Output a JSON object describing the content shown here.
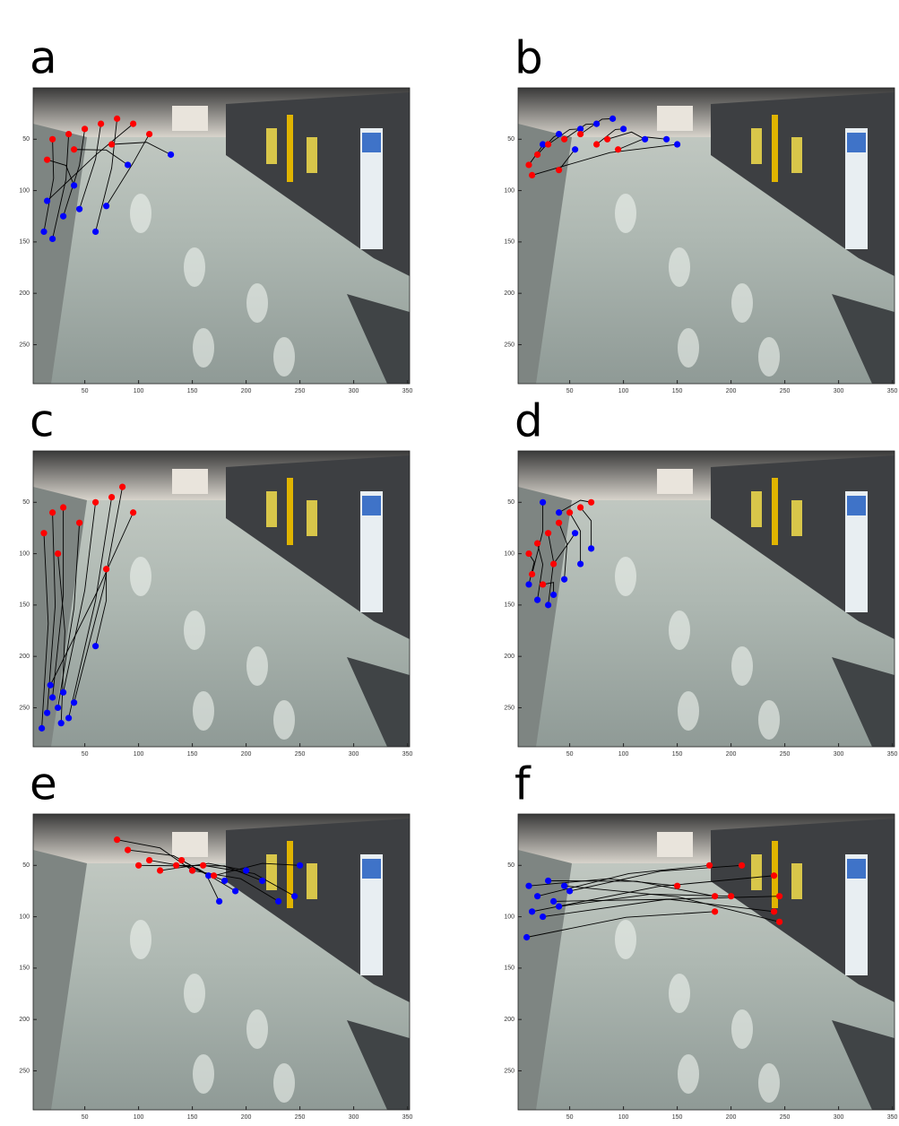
{
  "chart_data": [
    {
      "type": "scatter",
      "title": "a",
      "xlim": [
        2,
        352
      ],
      "ylim": [
        288,
        0
      ],
      "xticks": [
        50,
        100,
        150,
        200,
        250,
        300,
        350
      ],
      "yticks": [
        50,
        100,
        150,
        200,
        250
      ],
      "line_color": "#000000",
      "series": [
        {
          "color": "#0000ff",
          "x": [
            12,
            20,
            30,
            45,
            60,
            15,
            70,
            40,
            90,
            130
          ],
          "y": [
            140,
            147,
            125,
            118,
            140,
            110,
            115,
            95,
            75,
            65
          ]
        },
        {
          "color": "#ff0000",
          "x": [
            20,
            35,
            50,
            65,
            80,
            95,
            110,
            15,
            40,
            75
          ],
          "y": [
            50,
            45,
            40,
            35,
            30,
            35,
            45,
            70,
            60,
            55
          ]
        }
      ]
    },
    {
      "type": "scatter",
      "title": "b",
      "xlim": [
        2,
        352
      ],
      "ylim": [
        288,
        0
      ],
      "xticks": [
        50,
        100,
        150,
        200,
        250,
        300,
        350
      ],
      "yticks": [
        50,
        100,
        150,
        200,
        250
      ],
      "line_color": "#000000",
      "series": [
        {
          "color": "#0000ff",
          "x": [
            25,
            40,
            60,
            75,
            90,
            100,
            120,
            140,
            150,
            55
          ],
          "y": [
            55,
            45,
            40,
            35,
            30,
            40,
            50,
            50,
            55,
            60
          ]
        },
        {
          "color": "#ff0000",
          "x": [
            12,
            20,
            30,
            45,
            60,
            75,
            85,
            95,
            15,
            40
          ],
          "y": [
            75,
            65,
            55,
            50,
            45,
            55,
            50,
            60,
            85,
            80
          ]
        }
      ]
    },
    {
      "type": "scatter",
      "title": "c",
      "xlim": [
        2,
        352
      ],
      "ylim": [
        288,
        0
      ],
      "xticks": [
        50,
        100,
        150,
        200,
        250,
        300,
        350
      ],
      "yticks": [
        50,
        100,
        150,
        200,
        250
      ],
      "line_color": "#000000",
      "series": [
        {
          "color": "#0000ff",
          "x": [
            10,
            15,
            20,
            25,
            30,
            35,
            40,
            18,
            28,
            60
          ],
          "y": [
            270,
            255,
            240,
            250,
            235,
            260,
            245,
            228,
            265,
            190
          ]
        },
        {
          "color": "#ff0000",
          "x": [
            12,
            20,
            30,
            45,
            60,
            75,
            85,
            95,
            25,
            70
          ],
          "y": [
            80,
            60,
            55,
            70,
            50,
            45,
            35,
            60,
            100,
            115
          ]
        }
      ]
    },
    {
      "type": "scatter",
      "title": "d",
      "xlim": [
        2,
        352
      ],
      "ylim": [
        288,
        0
      ],
      "xticks": [
        50,
        100,
        150,
        200,
        250,
        300,
        350
      ],
      "yticks": [
        50,
        100,
        150,
        200,
        250
      ],
      "line_color": "#000000",
      "series": [
        {
          "color": "#0000ff",
          "x": [
            12,
            20,
            30,
            45,
            60,
            70,
            40,
            25,
            55,
            35
          ],
          "y": [
            130,
            145,
            150,
            125,
            110,
            95,
            60,
            50,
            80,
            140
          ]
        },
        {
          "color": "#ff0000",
          "x": [
            12,
            20,
            30,
            40,
            50,
            60,
            70,
            15,
            35,
            25
          ],
          "y": [
            100,
            90,
            80,
            70,
            60,
            55,
            50,
            120,
            110,
            130
          ]
        }
      ]
    },
    {
      "type": "scatter",
      "title": "e",
      "xlim": [
        2,
        352
      ],
      "ylim": [
        288,
        0
      ],
      "xticks": [
        50,
        100,
        150,
        200,
        250,
        300,
        350
      ],
      "yticks": [
        50,
        100,
        150,
        200,
        250
      ],
      "line_color": "#000000",
      "series": [
        {
          "color": "#0000ff",
          "x": [
            150,
            165,
            180,
            190,
            200,
            215,
            230,
            245,
            250,
            175
          ],
          "y": [
            55,
            60,
            65,
            75,
            55,
            65,
            85,
            80,
            50,
            85
          ]
        },
        {
          "color": "#ff0000",
          "x": [
            80,
            90,
            100,
            110,
            120,
            135,
            150,
            160,
            170,
            140
          ],
          "y": [
            25,
            35,
            50,
            45,
            55,
            50,
            55,
            50,
            60,
            45
          ]
        }
      ]
    },
    {
      "type": "scatter",
      "title": "f",
      "xlim": [
        2,
        352
      ],
      "ylim": [
        288,
        0
      ],
      "xticks": [
        50,
        100,
        150,
        200,
        250,
        300,
        350
      ],
      "yticks": [
        50,
        100,
        150,
        200,
        250
      ],
      "line_color": "#000000",
      "series": [
        {
          "color": "#0000ff",
          "x": [
            12,
            20,
            30,
            40,
            50,
            15,
            25,
            35,
            10,
            45
          ],
          "y": [
            70,
            80,
            65,
            90,
            75,
            95,
            100,
            85,
            120,
            70
          ]
        },
        {
          "color": "#ff0000",
          "x": [
            150,
            180,
            185,
            200,
            210,
            240,
            245,
            240,
            185,
            245
          ],
          "y": [
            70,
            50,
            80,
            80,
            50,
            60,
            80,
            95,
            95,
            105
          ]
        }
      ]
    }
  ]
}
